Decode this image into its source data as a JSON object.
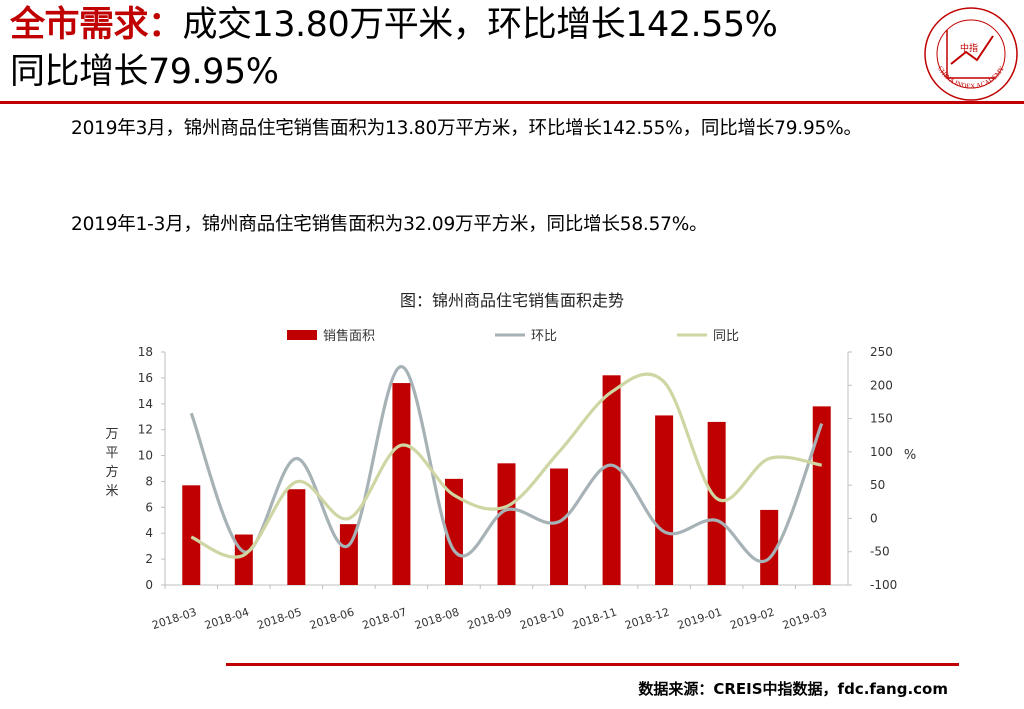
{
  "header": {
    "title_accent": "全市需求：",
    "title_line1": "成交13.80万平米，环比增长142.55%",
    "title_line2": "同比增长79.95%",
    "logo": {
      "icon": "china-index-academy-seal",
      "text": "CHINA INDEX ACADEMY",
      "center_char": "中指",
      "color": "#c00000"
    }
  },
  "paragraphs": {
    "p1": "2019年3月，锦州商品住宅销售面积为13.80万平方米，环比增长142.55%，同比增长79.95%。",
    "p2": "2019年1-3月，锦州商品住宅销售面积为32.09万平方米，同比增长58.57%。"
  },
  "chart_title": "图：锦州商品住宅销售面积走势",
  "chart_data": {
    "type": "bar",
    "title": "图：锦州商品住宅销售面积走势",
    "categories": [
      "2018-03",
      "2018-04",
      "2018-05",
      "2018-06",
      "2018-07",
      "2018-08",
      "2018-09",
      "2018-10",
      "2018-11",
      "2018-12",
      "2019-01",
      "2019-02",
      "2019-03"
    ],
    "series": [
      {
        "name": "销售面积",
        "type": "bar",
        "axis": "left",
        "color": "#c00000",
        "values": [
          7.7,
          3.9,
          7.4,
          4.7,
          15.6,
          8.2,
          9.4,
          9.0,
          16.2,
          13.1,
          12.6,
          5.8,
          13.8
        ]
      },
      {
        "name": "环比",
        "type": "line",
        "axis": "right",
        "color": "#a6b2b6",
        "values": [
          158,
          -50,
          90,
          -40,
          228,
          -48,
          13,
          -5,
          80,
          -20,
          -3,
          -60,
          142.55
        ]
      },
      {
        "name": "同比",
        "type": "line",
        "axis": "right",
        "color": "#cfd6a3",
        "values": [
          -28,
          -55,
          55,
          0,
          110,
          35,
          18,
          100,
          190,
          205,
          30,
          90,
          80
        ]
      }
    ],
    "yleft": {
      "label": "万平方米",
      "min": 0,
      "max": 18,
      "ticks": [
        0,
        2,
        4,
        6,
        8,
        10,
        12,
        14,
        16,
        18
      ]
    },
    "yright": {
      "label": "%",
      "min": -100,
      "max": 250,
      "ticks": [
        -100,
        -50,
        0,
        50,
        100,
        150,
        200,
        250
      ]
    },
    "legend_position": "top",
    "grid": false
  },
  "footer": {
    "source": "数据来源：CREIS中指数据，fdc.fang.com"
  }
}
